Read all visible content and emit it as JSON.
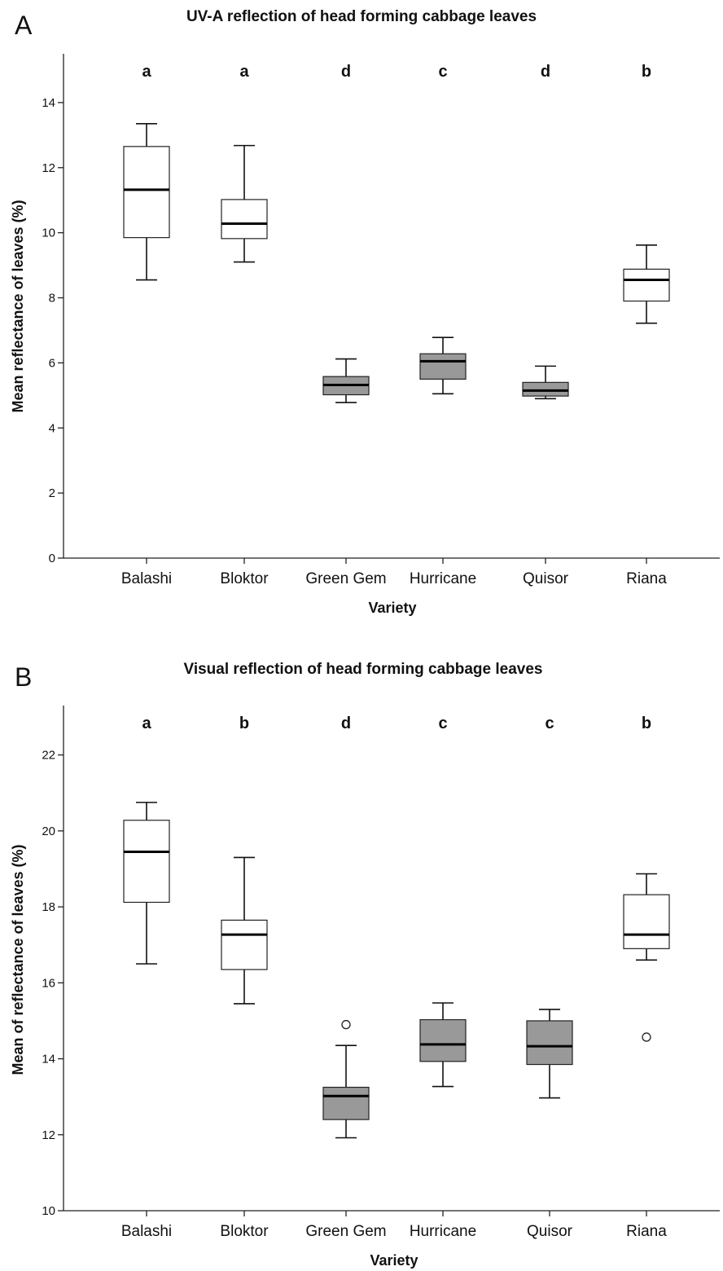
{
  "chart_data": [
    {
      "type": "box",
      "panel": "A",
      "title": "UV-A reflection of head forming cabbage leaves",
      "xlabel": "Variety",
      "ylabel": "Mean reflectance of leaves (%)",
      "ylim": [
        0,
        15.5
      ],
      "yticks": [
        0,
        2,
        4,
        6,
        8,
        10,
        12,
        14
      ],
      "grid": false,
      "categories": [
        "Balashi",
        "Bloktor",
        "Green Gem",
        "Hurricane",
        "Quisor",
        "Riana"
      ],
      "letters": [
        "a",
        "a",
        "d",
        "c",
        "d",
        "b"
      ],
      "box_colors": [
        "#ffffff",
        "#ffffff",
        "#999999",
        "#999999",
        "#999999",
        "#ffffff"
      ],
      "boxes": [
        {
          "min": 8.55,
          "q1": 9.85,
          "median": 11.32,
          "q3": 12.65,
          "max": 13.35,
          "outliers": []
        },
        {
          "min": 9.1,
          "q1": 9.82,
          "median": 10.28,
          "q3": 11.02,
          "max": 12.68,
          "outliers": []
        },
        {
          "min": 4.78,
          "q1": 5.02,
          "median": 5.32,
          "q3": 5.58,
          "max": 6.12,
          "outliers": []
        },
        {
          "min": 5.05,
          "q1": 5.5,
          "median": 6.05,
          "q3": 6.28,
          "max": 6.78,
          "outliers": []
        },
        {
          "min": 4.9,
          "q1": 4.98,
          "median": 5.15,
          "q3": 5.4,
          "max": 5.9,
          "outliers": []
        },
        {
          "min": 7.22,
          "q1": 7.9,
          "median": 8.55,
          "q3": 8.88,
          "max": 9.62,
          "outliers": []
        }
      ]
    },
    {
      "type": "box",
      "panel": "B",
      "title": "Visual reflection of head forming cabbage leaves",
      "xlabel": "Variety",
      "ylabel": "Mean of reflectance of leaves (%)",
      "ylim": [
        10,
        23.3
      ],
      "yticks": [
        10,
        12,
        14,
        16,
        18,
        20,
        22
      ],
      "grid": false,
      "categories": [
        "Balashi",
        "Bloktor",
        "Green Gem",
        "Hurricane",
        "Quisor",
        "Riana"
      ],
      "letters": [
        "a",
        "b",
        "d",
        "c",
        "c",
        "b"
      ],
      "box_colors": [
        "#ffffff",
        "#ffffff",
        "#999999",
        "#999999",
        "#999999",
        "#ffffff"
      ],
      "boxes": [
        {
          "min": 16.5,
          "q1": 18.12,
          "median": 19.45,
          "q3": 20.28,
          "max": 20.75,
          "outliers": []
        },
        {
          "min": 15.45,
          "q1": 16.35,
          "median": 17.27,
          "q3": 17.65,
          "max": 19.3,
          "outliers": []
        },
        {
          "min": 11.92,
          "q1": 12.4,
          "median": 13.02,
          "q3": 13.25,
          "max": 14.35,
          "outliers": [
            14.9
          ]
        },
        {
          "min": 13.27,
          "q1": 13.93,
          "median": 14.38,
          "q3": 15.03,
          "max": 15.47,
          "outliers": []
        },
        {
          "min": 12.97,
          "q1": 13.85,
          "median": 14.33,
          "q3": 15.0,
          "max": 15.3,
          "outliers": []
        },
        {
          "min": 16.6,
          "q1": 16.9,
          "median": 17.27,
          "q3": 18.32,
          "max": 18.87,
          "outliers": [
            14.57
          ]
        }
      ]
    }
  ]
}
